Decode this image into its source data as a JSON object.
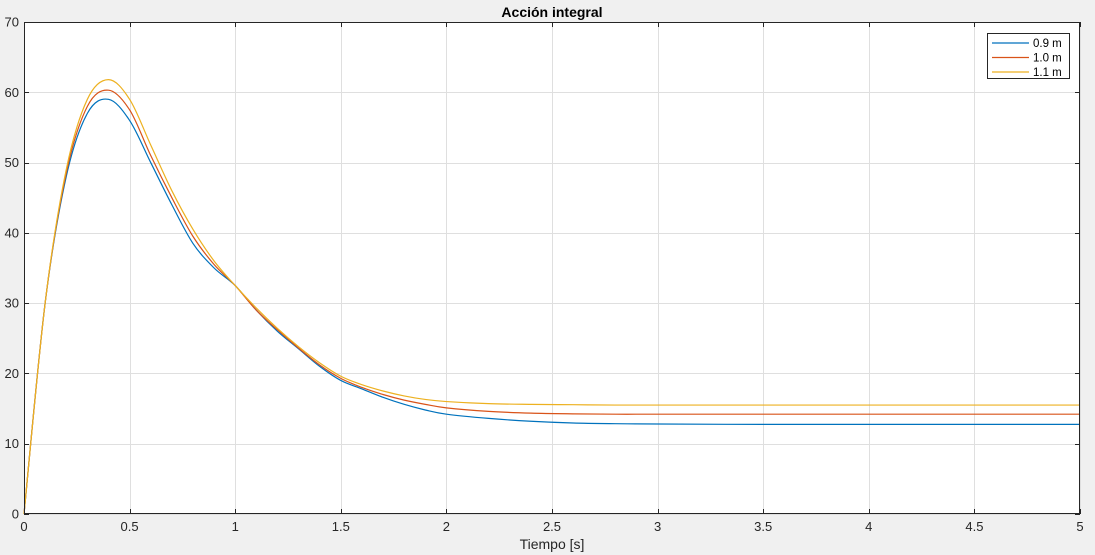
{
  "chart_data": {
    "type": "line",
    "title": "Acción integral",
    "xlabel": "Tiempo [s]",
    "ylabel": "",
    "xlim": [
      0,
      5
    ],
    "ylim": [
      0,
      70
    ],
    "xticks": [
      0,
      0.5,
      1,
      1.5,
      2,
      2.5,
      3,
      3.5,
      4,
      4.5,
      5
    ],
    "xtick_labels": [
      "0",
      "0.5",
      "1",
      "1.5",
      "2",
      "2.5",
      "3",
      "3.5",
      "4",
      "4.5",
      "5"
    ],
    "yticks": [
      0,
      10,
      20,
      30,
      40,
      50,
      60,
      70
    ],
    "ytick_labels": [
      "0",
      "10",
      "20",
      "30",
      "40",
      "50",
      "60",
      "70"
    ],
    "grid": true,
    "legend_position": "top-right",
    "background": "#ffffff",
    "series": [
      {
        "name": "0.9 m",
        "color": "#0072bd",
        "x": [
          0,
          0.1,
          0.2,
          0.3,
          0.4,
          0.5,
          0.6,
          0.7,
          0.8,
          0.9,
          1.0,
          1.1,
          1.2,
          1.3,
          1.4,
          1.5,
          1.6,
          1.7,
          1.8,
          1.9,
          2.0,
          2.2,
          2.4,
          2.6,
          2.8,
          3.0,
          3.5,
          4.0,
          4.5,
          5.0
        ],
        "y": [
          0,
          30,
          48,
          57,
          59,
          56,
          50,
          44,
          38.5,
          35,
          32.5,
          29,
          26,
          23.5,
          21,
          19,
          17.8,
          16.6,
          15.6,
          14.8,
          14.2,
          13.6,
          13.2,
          12.95,
          12.85,
          12.8,
          12.75,
          12.75,
          12.75,
          12.75
        ]
      },
      {
        "name": "1.0 m",
        "color": "#d95319",
        "x": [
          0,
          0.1,
          0.2,
          0.3,
          0.4,
          0.5,
          0.6,
          0.7,
          0.8,
          0.9,
          1.0,
          1.1,
          1.2,
          1.3,
          1.4,
          1.5,
          1.6,
          1.7,
          1.8,
          1.9,
          2.0,
          2.2,
          2.4,
          2.6,
          2.8,
          3.0,
          3.5,
          4.0,
          4.5,
          5.0
        ],
        "y": [
          0,
          30,
          48.5,
          58,
          60.3,
          57.5,
          51,
          45,
          39.5,
          35.5,
          32.5,
          29,
          26.2,
          23.6,
          21.2,
          19.3,
          18.0,
          17.0,
          16.2,
          15.6,
          15.1,
          14.6,
          14.35,
          14.25,
          14.2,
          14.2,
          14.2,
          14.2,
          14.2,
          14.2
        ]
      },
      {
        "name": "1.1 m",
        "color": "#edb120",
        "x": [
          0,
          0.1,
          0.2,
          0.3,
          0.4,
          0.5,
          0.6,
          0.7,
          0.8,
          0.9,
          1.0,
          1.1,
          1.2,
          1.3,
          1.4,
          1.5,
          1.6,
          1.7,
          1.8,
          1.9,
          2.0,
          2.2,
          2.4,
          2.6,
          2.8,
          3.0,
          3.5,
          4.0,
          4.5,
          5.0
        ],
        "y": [
          0,
          30,
          49,
          59,
          61.8,
          59,
          52.5,
          46,
          40.5,
          36,
          32.5,
          29.3,
          26.4,
          23.8,
          21.5,
          19.6,
          18.4,
          17.5,
          16.8,
          16.3,
          16.0,
          15.7,
          15.6,
          15.55,
          15.5,
          15.5,
          15.5,
          15.5,
          15.5,
          15.5
        ]
      }
    ]
  }
}
